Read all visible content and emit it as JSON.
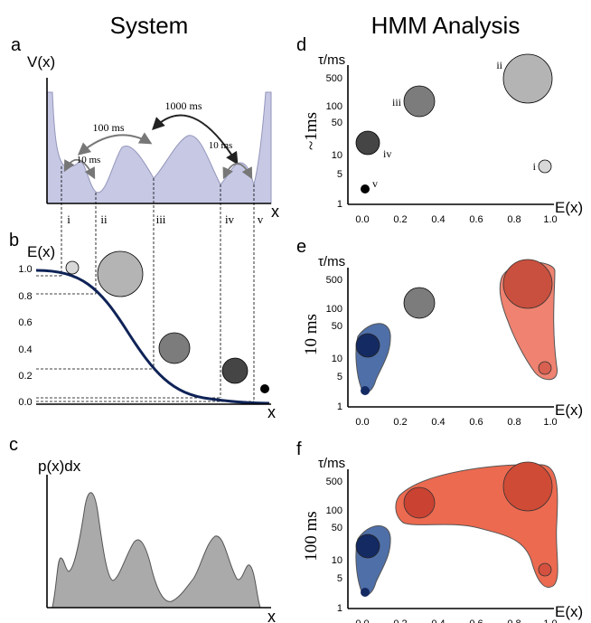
{
  "headers": {
    "left": "System",
    "right": "HMM Analysis"
  },
  "panels": {
    "a": {
      "letter": "a",
      "ylabel": "V(x)",
      "xlabel": "x",
      "transitions": [
        "1000 ms",
        "100 ms",
        "10 ms",
        "10 ms"
      ],
      "state_labels": [
        "i",
        "ii",
        "iii",
        "iv",
        "v"
      ]
    },
    "b": {
      "letter": "b",
      "ylabel": "E(x)",
      "xlabel": "x",
      "yticks": [
        "1.0",
        "0.8",
        "0.6",
        "0.4",
        "0.2",
        "0.0"
      ]
    },
    "c": {
      "letter": "c",
      "ylabel": "p(x)dx",
      "xlabel": "x"
    },
    "d": {
      "letter": "d",
      "ylabel": "τ/ms",
      "xlabel": "E(x)",
      "row_label": "~1ms",
      "state_labels": [
        "i",
        "ii",
        "iii",
        "iv",
        "v"
      ]
    },
    "e": {
      "letter": "e",
      "ylabel": "τ/ms",
      "xlabel": "E(x)",
      "row_label": "10 ms"
    },
    "f": {
      "letter": "f",
      "ylabel": "τ/ms",
      "xlabel": "E(x)",
      "row_label": "100 ms"
    }
  },
  "axes": {
    "y_ticks": [
      "500",
      "100",
      "50",
      "10",
      "5",
      "1"
    ],
    "x_ticks": [
      "0.0",
      "0.2",
      "0.4",
      "0.6",
      "0.8",
      "1.0"
    ]
  },
  "states": [
    {
      "id": "i",
      "E": 0.96,
      "tau": 7,
      "fill": "#d8d8d8"
    },
    {
      "id": "ii",
      "E": 0.87,
      "tau": 250,
      "fill": "#b4b4b4"
    },
    {
      "id": "iii",
      "E": 0.3,
      "tau": 130,
      "fill": "#7c7c7c"
    },
    {
      "id": "iv",
      "E": 0.03,
      "tau": 20,
      "fill": "#454545"
    },
    {
      "id": "v",
      "E": 0.02,
      "tau": 2.3,
      "fill": "#000000"
    }
  ],
  "colors": {
    "blue": "#4f6fa8",
    "red": "#ec6a50",
    "dark_blue": "#142a63",
    "curve": "#0f2357",
    "well": "#c6c8e4"
  }
}
